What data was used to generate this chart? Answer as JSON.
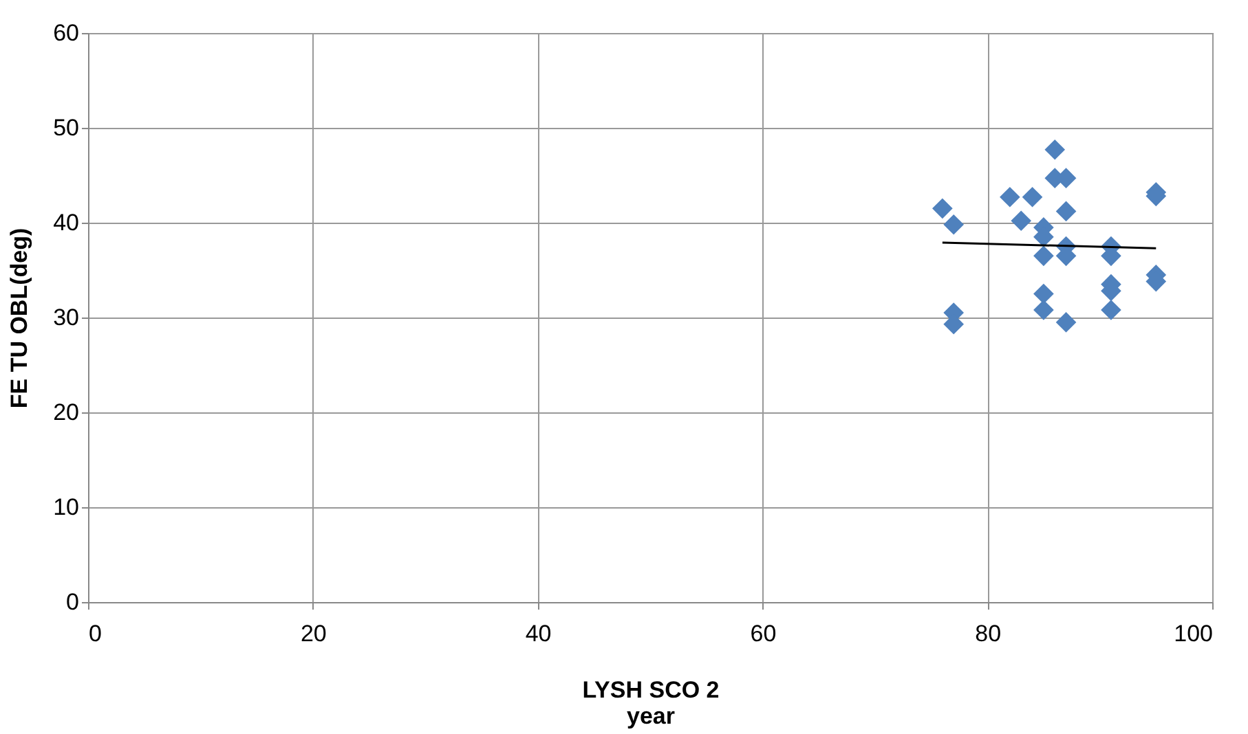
{
  "chart_data": {
    "type": "scatter",
    "xlabel": "LYSH SCO 2\nyear",
    "ylabel": "FE TU OBL(deg)",
    "xlim": [
      0,
      100
    ],
    "xticks": [
      0,
      20,
      40,
      60,
      80,
      100
    ],
    "ylim": [
      0,
      60
    ],
    "yticks": [
      0,
      10,
      20,
      30,
      40,
      50,
      60
    ],
    "grid": true,
    "series": [
      {
        "marker": "diamond",
        "color": "#4f81bd",
        "x": [
          76,
          77,
          77,
          77,
          82,
          83,
          84,
          85,
          85,
          85,
          85,
          85,
          86,
          86,
          87,
          87,
          87,
          87,
          87,
          91,
          91,
          91,
          91,
          91,
          95,
          95,
          95,
          95
        ],
        "values": [
          41.5,
          39.8,
          30.5,
          29.3,
          42.7,
          40.2,
          42.7,
          39.5,
          38.5,
          36.5,
          32.5,
          30.8,
          47.7,
          44.7,
          44.7,
          41.2,
          37.5,
          36.5,
          29.5,
          37.5,
          36.5,
          33.5,
          32.8,
          30.8,
          43.2,
          42.8,
          34.5,
          33.8
        ]
      },
      {
        "type": "line",
        "marker": "none",
        "color": "#000000",
        "x": [
          76,
          95
        ],
        "values": [
          37.9,
          37.3
        ]
      }
    ]
  }
}
